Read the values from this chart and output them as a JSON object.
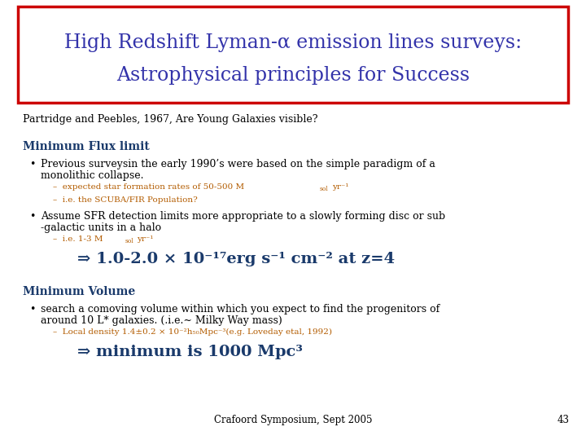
{
  "title_line1": "High Redshift Lyman-α emission lines surveys:",
  "title_line2": "Astrophysical principles for Success",
  "title_color": "#3333aa",
  "title_box_edge_color": "#cc0000",
  "subtitle": "Partridge and Peebles, 1967, Are Young Galaxies visible?",
  "section1_header": "Minimum Flux limit",
  "section1_color": "#1a3a6b",
  "sub_bullet_color": "#b35c00",
  "section2_header": "Minimum Volume",
  "section2_color": "#1a3a6b",
  "footer": "Crafoord Symposium, Sept 2005",
  "page_number": "43",
  "background_color": "#ffffff",
  "text_color": "#000000"
}
